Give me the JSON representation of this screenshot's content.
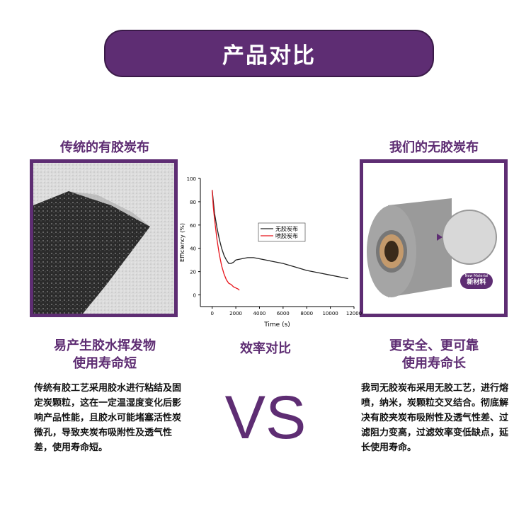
{
  "banner": {
    "title": "产品对比"
  },
  "left": {
    "heading": "传统的有胶炭布",
    "subtitle_1": "易产生胶水挥发物",
    "subtitle_2": "使用寿命短",
    "description": "传统有胶工艺采用胶水进行粘结及固定炭颗粒，这在一定温湿度变化后影响产品性能，且胶水可能堵塞活性炭微孔，导致夹炭布吸附性及透气性差，使用寿命短。"
  },
  "center": {
    "heading": "效率对比",
    "vs": "VS"
  },
  "right": {
    "heading": "我们的无胶炭布",
    "subtitle_1": "更安全、更可靠",
    "subtitle_2": "使用寿命长",
    "description": "我司无胶炭布采用无胶工艺，进行熔喷，纳米，炭颗粒交叉结合。彻底解决有胶夹炭布吸附性及透气性差、过滤阻力变高，过滤效率变低缺点，延长使用寿命。",
    "badge_en": "New Material",
    "badge_cn": "新材料"
  },
  "colors": {
    "brand": "#5e2d73",
    "series_1": "#222222",
    "series_2": "#e8141b"
  },
  "chart_data": {
    "type": "line",
    "xlabel": "Time (s)",
    "ylabel": "Efficiency (%)",
    "xlim": [
      -1000,
      12000
    ],
    "ylim": [
      -10,
      100
    ],
    "xticks": [
      0,
      2000,
      4000,
      6000,
      8000,
      10000,
      12000
    ],
    "yticks": [
      0,
      20,
      40,
      60,
      80,
      100
    ],
    "legend_position": "center-right",
    "series": [
      {
        "name": "无胶炭布",
        "x": [
          0,
          200,
          400,
          600,
          800,
          1000,
          1200,
          1400,
          1600,
          1800,
          2000,
          2500,
          3000,
          3500,
          4000,
          5000,
          6000,
          7000,
          8000,
          9000,
          10000,
          11000,
          11500
        ],
        "y": [
          90,
          70,
          58,
          48,
          40,
          34,
          30,
          27,
          27,
          28,
          30,
          31,
          32,
          32,
          31,
          29,
          27,
          24,
          21,
          19,
          17,
          15,
          14
        ]
      },
      {
        "name": "喷胶炭布",
        "x": [
          0,
          100,
          200,
          400,
          600,
          800,
          1000,
          1200,
          1400,
          1600,
          1800,
          2000,
          2200,
          2300
        ],
        "y": [
          90,
          75,
          65,
          48,
          35,
          25,
          18,
          13,
          10,
          9,
          7,
          6,
          5,
          4
        ]
      }
    ]
  }
}
